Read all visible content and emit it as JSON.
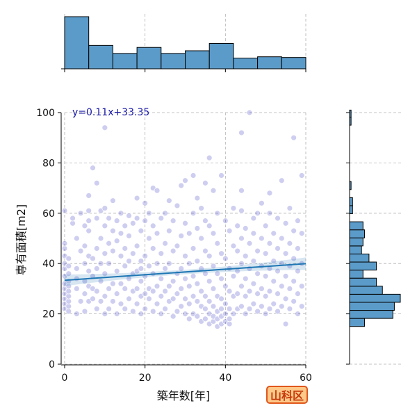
{
  "chart_data": {
    "type": "scatter",
    "xlabel": "築年数[年]",
    "ylabel": "専有面積[m2]",
    "xlim": [
      0,
      60
    ],
    "ylim": [
      0,
      100
    ],
    "xticks": [
      0,
      20,
      40,
      60
    ],
    "yticks": [
      0,
      20,
      40,
      60,
      80,
      100
    ],
    "grid": true,
    "regression": {
      "label": "y=0.11x+33.35",
      "slope": 0.11,
      "intercept": 33.35,
      "color": "#1f77b4"
    },
    "point_color": "#2222bb",
    "hist_color": "#5b9bc9",
    "x_histogram": {
      "bins": [
        0,
        6,
        12,
        18,
        24,
        30,
        36,
        42,
        48,
        54,
        60
      ],
      "counts": [
        78,
        35,
        23,
        32,
        23,
        27,
        38,
        16,
        18,
        17
      ]
    },
    "y_histogram": {
      "bins": [
        15,
        18.2,
        21.4,
        24.6,
        27.8,
        31,
        34.2,
        37.4,
        40.6,
        43.8,
        47,
        50.2,
        53.4,
        56.6,
        59.8,
        63,
        66.2,
        69.4,
        72.6,
        75.8,
        79,
        82.2,
        85.4,
        88.6,
        91.8,
        95,
        98.2,
        101
      ],
      "counts": [
        10,
        29,
        30,
        34,
        22,
        18,
        9,
        18,
        13,
        8,
        9,
        10,
        9,
        0,
        2,
        2,
        0,
        1,
        0,
        0,
        0,
        0,
        0,
        0,
        0,
        1,
        1
      ]
    },
    "points": [
      [
        0,
        22
      ],
      [
        0,
        24
      ],
      [
        0,
        26
      ],
      [
        0,
        28
      ],
      [
        0,
        30
      ],
      [
        0,
        32
      ],
      [
        0,
        35
      ],
      [
        0,
        38
      ],
      [
        0,
        40
      ],
      [
        0,
        43
      ],
      [
        0,
        46
      ],
      [
        0,
        48
      ],
      [
        0,
        61
      ],
      [
        1,
        21
      ],
      [
        1,
        23
      ],
      [
        1,
        25
      ],
      [
        1,
        27
      ],
      [
        1,
        29
      ],
      [
        1,
        31
      ],
      [
        1,
        33
      ],
      [
        1,
        36
      ],
      [
        1,
        39
      ],
      [
        1,
        42
      ],
      [
        2,
        56
      ],
      [
        2,
        58
      ],
      [
        3,
        20
      ],
      [
        3,
        30
      ],
      [
        3,
        34
      ],
      [
        3,
        38
      ],
      [
        3,
        50
      ],
      [
        4,
        25
      ],
      [
        4,
        45
      ],
      [
        4,
        60
      ],
      [
        5,
        21
      ],
      [
        5,
        28
      ],
      [
        5,
        33
      ],
      [
        5,
        40
      ],
      [
        5,
        47
      ],
      [
        5,
        55
      ],
      [
        6,
        25
      ],
      [
        6,
        31
      ],
      [
        6,
        37
      ],
      [
        6,
        43
      ],
      [
        6,
        53
      ],
      [
        6,
        57
      ],
      [
        6,
        61
      ],
      [
        6,
        67
      ],
      [
        7,
        26
      ],
      [
        7,
        30
      ],
      [
        7,
        35
      ],
      [
        7,
        42
      ],
      [
        7,
        78
      ],
      [
        8,
        22
      ],
      [
        8,
        29
      ],
      [
        8,
        38
      ],
      [
        8,
        46
      ],
      [
        8,
        58
      ],
      [
        8,
        72
      ],
      [
        9,
        25
      ],
      [
        9,
        33
      ],
      [
        9,
        40
      ],
      [
        9,
        50
      ],
      [
        9,
        61
      ],
      [
        10,
        20
      ],
      [
        10,
        27
      ],
      [
        10,
        36
      ],
      [
        10,
        44
      ],
      [
        10,
        55
      ],
      [
        10,
        62
      ],
      [
        10,
        94
      ],
      [
        11,
        22
      ],
      [
        11,
        30
      ],
      [
        11,
        40
      ],
      [
        11,
        48
      ],
      [
        11,
        58
      ],
      [
        12,
        25
      ],
      [
        12,
        32
      ],
      [
        12,
        45
      ],
      [
        12,
        53
      ],
      [
        12,
        65
      ],
      [
        13,
        20
      ],
      [
        13,
        28
      ],
      [
        13,
        37
      ],
      [
        13,
        49
      ],
      [
        13,
        57
      ],
      [
        14,
        24
      ],
      [
        14,
        32
      ],
      [
        14,
        43
      ],
      [
        14,
        52
      ],
      [
        14,
        60
      ],
      [
        15,
        22
      ],
      [
        15,
        30
      ],
      [
        15,
        39
      ],
      [
        15,
        46
      ],
      [
        15,
        55
      ],
      [
        16,
        26
      ],
      [
        16,
        34
      ],
      [
        16,
        41
      ],
      [
        16,
        51
      ],
      [
        16,
        59
      ],
      [
        17,
        21
      ],
      [
        17,
        29
      ],
      [
        17,
        36
      ],
      [
        17,
        44
      ],
      [
        17,
        56
      ],
      [
        18,
        24
      ],
      [
        18,
        30
      ],
      [
        18,
        37
      ],
      [
        18,
        47
      ],
      [
        18,
        58
      ],
      [
        18,
        66
      ],
      [
        19,
        20
      ],
      [
        19,
        27
      ],
      [
        19,
        33
      ],
      [
        19,
        38
      ],
      [
        19,
        41
      ],
      [
        19,
        53
      ],
      [
        20,
        22
      ],
      [
        20,
        28
      ],
      [
        20,
        35
      ],
      [
        20,
        43
      ],
      [
        20,
        57
      ],
      [
        20,
        64
      ],
      [
        21,
        26
      ],
      [
        21,
        30
      ],
      [
        21,
        39
      ],
      [
        21,
        50
      ],
      [
        21,
        60
      ],
      [
        22,
        21
      ],
      [
        22,
        29
      ],
      [
        22,
        36
      ],
      [
        22,
        46
      ],
      [
        22,
        55
      ],
      [
        22,
        70
      ],
      [
        23,
        24
      ],
      [
        23,
        31
      ],
      [
        23,
        40
      ],
      [
        23,
        52
      ],
      [
        23,
        69
      ],
      [
        24,
        20
      ],
      [
        24,
        27
      ],
      [
        24,
        34
      ],
      [
        24,
        44
      ],
      [
        24,
        58
      ],
      [
        25,
        22
      ],
      [
        25,
        29
      ],
      [
        25,
        38
      ],
      [
        25,
        48
      ],
      [
        25,
        60
      ],
      [
        26,
        25
      ],
      [
        26,
        31
      ],
      [
        26,
        40
      ],
      [
        26,
        53
      ],
      [
        26,
        65
      ],
      [
        27,
        19
      ],
      [
        27,
        26
      ],
      [
        27,
        33
      ],
      [
        27,
        45
      ],
      [
        27,
        57
      ],
      [
        28,
        21
      ],
      [
        28,
        28
      ],
      [
        28,
        36
      ],
      [
        28,
        47
      ],
      [
        28,
        63
      ],
      [
        29,
        23
      ],
      [
        29,
        30
      ],
      [
        29,
        38
      ],
      [
        29,
        51
      ],
      [
        29,
        71
      ],
      [
        30,
        20
      ],
      [
        30,
        26
      ],
      [
        30,
        34
      ],
      [
        30,
        43
      ],
      [
        30,
        56
      ],
      [
        30,
        73
      ],
      [
        31,
        18
      ],
      [
        31,
        24
      ],
      [
        31,
        31
      ],
      [
        31,
        40
      ],
      [
        31,
        52
      ],
      [
        32,
        20
      ],
      [
        32,
        27
      ],
      [
        32,
        35
      ],
      [
        32,
        46
      ],
      [
        32,
        60
      ],
      [
        32,
        75
      ],
      [
        33,
        19
      ],
      [
        33,
        25
      ],
      [
        33,
        32
      ],
      [
        33,
        41
      ],
      [
        33,
        54
      ],
      [
        33,
        66
      ],
      [
        34,
        17
      ],
      [
        34,
        23
      ],
      [
        34,
        29
      ],
      [
        34,
        38
      ],
      [
        34,
        50
      ],
      [
        34,
        62
      ],
      [
        35,
        18
      ],
      [
        35,
        22
      ],
      [
        35,
        27
      ],
      [
        35,
        36
      ],
      [
        35,
        45
      ],
      [
        35,
        57
      ],
      [
        35,
        72
      ],
      [
        36,
        16
      ],
      [
        36,
        20
      ],
      [
        36,
        25
      ],
      [
        36,
        33
      ],
      [
        36,
        43
      ],
      [
        36,
        55
      ],
      [
        36,
        82
      ],
      [
        37,
        17
      ],
      [
        37,
        19
      ],
      [
        37,
        23
      ],
      [
        37,
        30
      ],
      [
        37,
        39
      ],
      [
        37,
        52
      ],
      [
        37,
        69
      ],
      [
        38,
        15
      ],
      [
        38,
        18
      ],
      [
        38,
        21
      ],
      [
        38,
        27
      ],
      [
        38,
        36
      ],
      [
        38,
        48
      ],
      [
        38,
        60
      ],
      [
        39,
        16
      ],
      [
        39,
        19
      ],
      [
        39,
        22
      ],
      [
        39,
        26
      ],
      [
        39,
        34
      ],
      [
        39,
        44
      ],
      [
        39,
        75
      ],
      [
        40,
        17
      ],
      [
        40,
        20
      ],
      [
        40,
        24
      ],
      [
        40,
        31
      ],
      [
        40,
        42
      ],
      [
        40,
        57
      ],
      [
        41,
        16
      ],
      [
        41,
        18
      ],
      [
        41,
        22
      ],
      [
        41,
        29
      ],
      [
        41,
        38
      ],
      [
        41,
        53
      ],
      [
        42,
        20
      ],
      [
        42,
        27
      ],
      [
        42,
        35
      ],
      [
        42,
        47
      ],
      [
        42,
        62
      ],
      [
        43,
        22
      ],
      [
        43,
        28
      ],
      [
        43,
        37
      ],
      [
        43,
        45
      ],
      [
        43,
        55
      ],
      [
        44,
        23
      ],
      [
        44,
        31
      ],
      [
        44,
        40
      ],
      [
        44,
        50
      ],
      [
        44,
        61
      ],
      [
        44,
        69
      ],
      [
        44,
        92
      ],
      [
        45,
        20
      ],
      [
        45,
        27
      ],
      [
        45,
        34
      ],
      [
        45,
        43
      ],
      [
        45,
        54
      ],
      [
        46,
        22
      ],
      [
        46,
        29
      ],
      [
        46,
        38
      ],
      [
        46,
        48
      ],
      [
        46,
        100
      ],
      [
        47,
        24
      ],
      [
        47,
        32
      ],
      [
        47,
        41
      ],
      [
        47,
        52
      ],
      [
        47,
        58
      ],
      [
        48,
        21
      ],
      [
        48,
        28
      ],
      [
        48,
        36
      ],
      [
        48,
        45
      ],
      [
        48,
        60
      ],
      [
        49,
        23
      ],
      [
        49,
        30
      ],
      [
        49,
        39
      ],
      [
        49,
        50
      ],
      [
        49,
        64
      ],
      [
        50,
        20
      ],
      [
        50,
        27
      ],
      [
        50,
        35
      ],
      [
        50,
        44
      ],
      [
        50,
        55
      ],
      [
        51,
        22
      ],
      [
        51,
        29
      ],
      [
        51,
        38
      ],
      [
        51,
        48
      ],
      [
        51,
        60
      ],
      [
        51,
        68
      ],
      [
        52,
        24
      ],
      [
        52,
        33
      ],
      [
        52,
        41
      ],
      [
        52,
        52
      ],
      [
        53,
        21
      ],
      [
        53,
        28
      ],
      [
        53,
        37
      ],
      [
        53,
        46
      ],
      [
        53,
        58
      ],
      [
        54,
        23
      ],
      [
        54,
        31
      ],
      [
        54,
        40
      ],
      [
        54,
        50
      ],
      [
        54,
        73
      ],
      [
        55,
        16
      ],
      [
        55,
        26
      ],
      [
        55,
        35
      ],
      [
        55,
        44
      ],
      [
        55,
        56
      ],
      [
        56,
        22
      ],
      [
        56,
        30
      ],
      [
        56,
        39
      ],
      [
        56,
        48
      ],
      [
        56,
        62
      ],
      [
        57,
        25
      ],
      [
        57,
        33
      ],
      [
        57,
        42
      ],
      [
        57,
        53
      ],
      [
        57,
        90
      ],
      [
        58,
        20
      ],
      [
        58,
        28
      ],
      [
        58,
        37
      ],
      [
        58,
        46
      ],
      [
        58,
        57
      ],
      [
        59,
        23
      ],
      [
        59,
        31
      ],
      [
        59,
        40
      ],
      [
        59,
        52
      ],
      [
        59,
        75
      ]
    ]
  },
  "badge": {
    "label": "山科区",
    "fill": "#ffc98a",
    "border": "#e0561b",
    "text_color": "#c53a0c"
  }
}
